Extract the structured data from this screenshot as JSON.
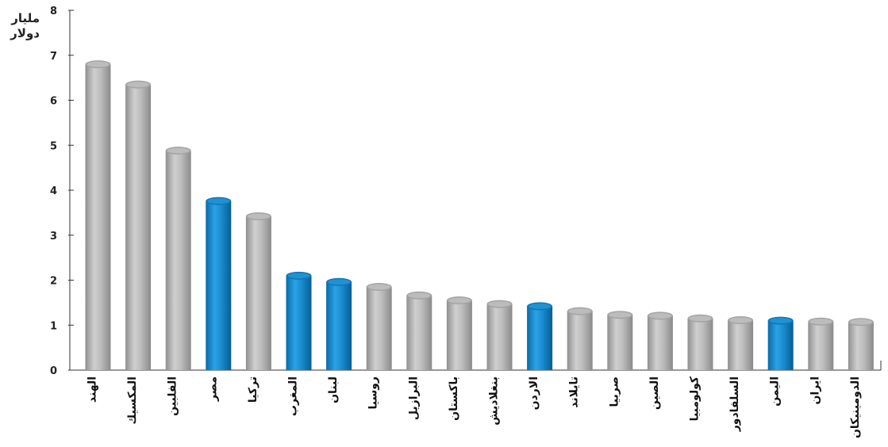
{
  "chart_data": {
    "type": "bar",
    "ylabel_lines": [
      "مليار",
      "دولار"
    ],
    "ylim": [
      0,
      8
    ],
    "yticks": [
      0,
      1,
      2,
      3,
      4,
      5,
      6,
      7,
      8
    ],
    "categories": [
      "الهند",
      "المكسيك",
      "الفلبين",
      "مصر",
      "تركيا",
      "المغرب",
      "لبنان",
      "روسيا",
      "البرازيل",
      "باكستان",
      "بنغلاديش",
      "الاردن",
      "تايلاند",
      "صربيا",
      "الصين",
      "كولومبيا",
      "السلفادور",
      "اليمن",
      "ايران",
      "الدومينيكان"
    ],
    "values": [
      6.8,
      6.35,
      4.88,
      3.76,
      3.42,
      2.1,
      1.96,
      1.85,
      1.66,
      1.55,
      1.47,
      1.42,
      1.31,
      1.23,
      1.21,
      1.15,
      1.11,
      1.1,
      1.08,
      1.07
    ],
    "highlighted": [
      false,
      false,
      false,
      true,
      false,
      true,
      true,
      false,
      false,
      false,
      false,
      true,
      false,
      false,
      false,
      false,
      false,
      true,
      false,
      false
    ],
    "colors": {
      "default": "#b8b8b8",
      "highlight": "#1a8ccf",
      "axis": "#333333"
    },
    "grid": false,
    "legend": "none"
  }
}
